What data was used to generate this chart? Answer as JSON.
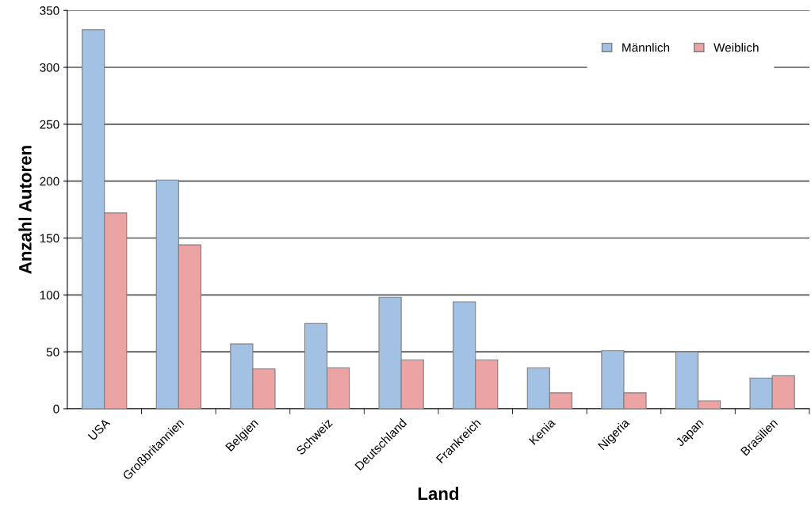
{
  "chart_data": {
    "type": "bar",
    "xlabel": "Land",
    "ylabel": "Anzahl Autoren",
    "categories": [
      "USA",
      "Großbritannien",
      "Belgien",
      "Schweiz",
      "Deutschland",
      "Frankreich",
      "Kenia",
      "Nigeria",
      "Japan",
      "Brasilien"
    ],
    "series": [
      {
        "name": "Männlich",
        "color": "#a3c1e3",
        "values": [
          333,
          201,
          57,
          75,
          98,
          94,
          36,
          51,
          50,
          27
        ]
      },
      {
        "name": "Weiblich",
        "color": "#eba3a3",
        "values": [
          172,
          144,
          35,
          36,
          43,
          43,
          14,
          14,
          7,
          29
        ]
      }
    ],
    "ylim": [
      0,
      350
    ],
    "yticks": [
      0,
      50,
      100,
      150,
      200,
      250,
      300,
      350
    ],
    "grid": "y",
    "legend": "top right"
  }
}
